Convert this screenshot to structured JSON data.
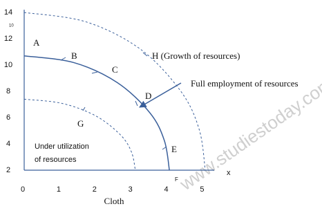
{
  "chart_data": {
    "type": "line",
    "x_label": "Cloth",
    "x_axis_end_label": "x",
    "xlim": [
      0,
      5.3
    ],
    "ylim": [
      2,
      14
    ],
    "xticks": [
      0,
      1,
      2,
      3,
      4,
      5
    ],
    "yticks": [
      2,
      4,
      6,
      8,
      10,
      12,
      14
    ],
    "color": "#3a5f9a",
    "series": [
      {
        "x": [
          0,
          1.39,
          2.6,
          3.51,
          3.91,
          4.05
        ],
        "values": [
          10.7,
          10.18,
          8.66,
          6.35,
          4.25,
          2
        ],
        "style": "solid"
      },
      {
        "x": [
          0,
          1.73,
          3.25,
          4.37,
          4.88,
          5.05
        ],
        "values": [
          14,
          13.28,
          11.19,
          8,
          5.11,
          2
        ],
        "style": "dashed"
      },
      {
        "x": [
          0,
          1.06,
          1.99,
          2.68,
          2.99,
          3.1
        ],
        "values": [
          7.4,
          7.08,
          6.14,
          4.7,
          3.4,
          2
        ],
        "style": "dashed"
      }
    ],
    "annotations": [
      "A",
      "B",
      "C",
      "D",
      "E",
      "F",
      "G",
      "H (Growth of resources)",
      "Full employment of resources",
      "Under utilization",
      "of resources",
      "10"
    ],
    "watermark": "www.studiestoday.com"
  }
}
